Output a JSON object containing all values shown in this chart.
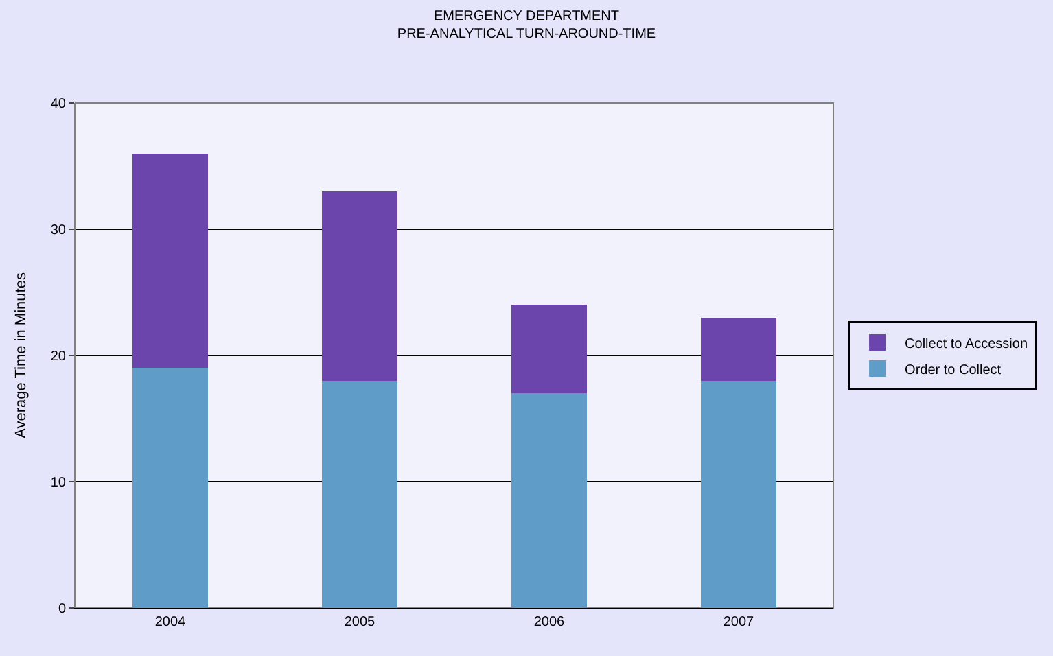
{
  "chart_data": {
    "type": "bar",
    "title": "EMERGENCY DEPARTMENT",
    "subtitle": "PRE-ANALYTICAL TURN-AROUND-TIME",
    "ylabel": "Average Time in Minutes",
    "categories": [
      "2004",
      "2005",
      "2006",
      "2007"
    ],
    "series": [
      {
        "name": "Order to Collect",
        "color": "#5f9cc8",
        "values": [
          19,
          18,
          17,
          18
        ]
      },
      {
        "name": "Collect to Accession",
        "color": "#6b44ac",
        "values": [
          17,
          15,
          7,
          5
        ]
      }
    ],
    "stacked": true,
    "ylim": [
      0,
      40
    ],
    "yticks": [
      0,
      10,
      20,
      30,
      40
    ],
    "grid": "y",
    "legend": "right"
  }
}
